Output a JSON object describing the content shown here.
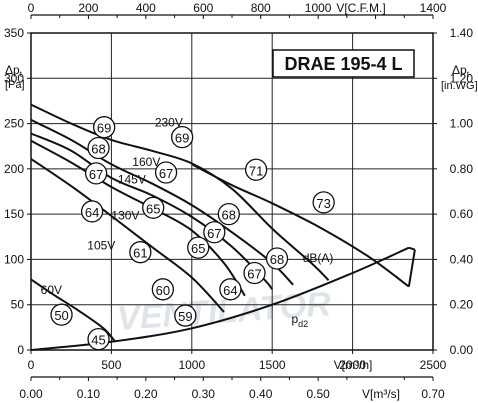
{
  "chart_data": {
    "type": "line",
    "title": "DRAE 195-4 L",
    "watermark": "VENTILATOR",
    "axes": {
      "left": {
        "label_delta": "Δp",
        "label_sub": "t",
        "unit": "[Pa]",
        "range": [
          0,
          350
        ],
        "ticks": [
          "0",
          "50",
          "100",
          "150",
          "200",
          "250",
          "300",
          "350"
        ]
      },
      "right": {
        "label_delta": "Δp",
        "label_sub": "t",
        "unit": "[in.WG]",
        "range": [
          0,
          1.4
        ],
        "ticks": [
          "0.00",
          "0.20",
          "0.40",
          "0.60",
          "0.80",
          "1.00",
          "1.20",
          "1.40"
        ]
      },
      "bottom": {
        "label": "V[m³/h]",
        "range": [
          0,
          2500
        ],
        "ticks": [
          "0",
          "500",
          "1000",
          "1500",
          "2000",
          "2500"
        ]
      },
      "top": {
        "label": "V[C.F.M.]",
        "range": [
          0,
          1400
        ],
        "ticks": [
          "0",
          "200",
          "400",
          "600",
          "800",
          "1000",
          "1400"
        ]
      },
      "bottom2": {
        "label": "V[m³/s]",
        "range": [
          0,
          0.7
        ],
        "ticks": [
          "0.00",
          "0.10",
          "0.20",
          "0.30",
          "0.40",
          "0.50",
          "0.70"
        ]
      },
      "grid": true
    },
    "series": [
      {
        "name": "230V",
        "points": [
          [
            0,
            271
          ],
          [
            250,
            250
          ],
          [
            500,
            232
          ],
          [
            750,
            220
          ],
          [
            1000,
            206
          ],
          [
            1250,
            178
          ],
          [
            1500,
            134
          ],
          [
            1750,
            95
          ],
          [
            1850,
            77
          ]
        ]
      },
      {
        "name": "160V",
        "points": [
          [
            0,
            254
          ],
          [
            250,
            232
          ],
          [
            500,
            205
          ],
          [
            750,
            184
          ],
          [
            1000,
            160
          ],
          [
            1250,
            130
          ],
          [
            1500,
            96
          ],
          [
            1630,
            72
          ]
        ]
      },
      {
        "name": "145V",
        "points": [
          [
            0,
            239
          ],
          [
            250,
            220
          ],
          [
            500,
            190
          ],
          [
            750,
            171
          ],
          [
            1000,
            147
          ],
          [
            1250,
            114
          ],
          [
            1450,
            78
          ],
          [
            1500,
            67
          ]
        ]
      },
      {
        "name": "130V",
        "points": [
          [
            0,
            231
          ],
          [
            250,
            207
          ],
          [
            500,
            180
          ],
          [
            750,
            157
          ],
          [
            1000,
            132
          ],
          [
            1200,
            96
          ],
          [
            1330,
            60
          ]
        ]
      },
      {
        "name": "105V",
        "points": [
          [
            0,
            211
          ],
          [
            250,
            181
          ],
          [
            500,
            148
          ],
          [
            750,
            114
          ],
          [
            1000,
            80
          ],
          [
            1200,
            42
          ]
        ]
      },
      {
        "name": "60V",
        "points": [
          [
            0,
            78
          ],
          [
            150,
            60
          ],
          [
            300,
            43
          ],
          [
            450,
            24
          ],
          [
            520,
            10
          ]
        ]
      }
    ],
    "system_line": {
      "label": "pd2",
      "label_main": "p",
      "label_sub": "d2",
      "points": [
        [
          0,
          0
        ],
        [
          500,
          9
        ],
        [
          1000,
          24
        ],
        [
          1500,
          50
        ],
        [
          2000,
          85
        ],
        [
          2350,
          113
        ]
      ]
    },
    "upper_boundary": {
      "points": [
        [
          1000,
          205
        ],
        [
          1250,
          182
        ],
        [
          1500,
          162
        ],
        [
          1800,
          135
        ],
        [
          2100,
          103
        ],
        [
          2350,
          70
        ],
        [
          2350,
          113
        ]
      ]
    },
    "voltage_labels": [
      {
        "text": "230V",
        "x": 770,
        "y": 247
      },
      {
        "text": "160V",
        "x": 630,
        "y": 203
      },
      {
        "text": "145V",
        "x": 540,
        "y": 184
      },
      {
        "text": "130V",
        "x": 500,
        "y": 144
      },
      {
        "text": "105V",
        "x": 350,
        "y": 111
      },
      {
        "text": "60V",
        "x": 60,
        "y": 62
      }
    ],
    "noise_markers_label": "dB(A)",
    "noise_markers": [
      {
        "value": "69",
        "x": 455,
        "y": 246
      },
      {
        "value": "69",
        "x": 940,
        "y": 235
      },
      {
        "value": "68",
        "x": 420,
        "y": 223
      },
      {
        "value": "67",
        "x": 405,
        "y": 195
      },
      {
        "value": "67",
        "x": 840,
        "y": 196
      },
      {
        "value": "71",
        "x": 1400,
        "y": 199
      },
      {
        "value": "73",
        "x": 1820,
        "y": 163
      },
      {
        "value": "64",
        "x": 380,
        "y": 153
      },
      {
        "value": "65",
        "x": 760,
        "y": 157
      },
      {
        "value": "68",
        "x": 1230,
        "y": 150
      },
      {
        "value": "67",
        "x": 1140,
        "y": 130
      },
      {
        "value": "61",
        "x": 680,
        "y": 108
      },
      {
        "value": "65",
        "x": 1040,
        "y": 113
      },
      {
        "value": "68",
        "x": 1530,
        "y": 101
      },
      {
        "value": "67",
        "x": 1390,
        "y": 85
      },
      {
        "value": "60",
        "x": 820,
        "y": 67
      },
      {
        "value": "64",
        "x": 1240,
        "y": 67
      },
      {
        "value": "59",
        "x": 960,
        "y": 38
      },
      {
        "value": "50",
        "x": 190,
        "y": 39
      },
      {
        "value": "45",
        "x": 420,
        "y": 12
      }
    ]
  }
}
